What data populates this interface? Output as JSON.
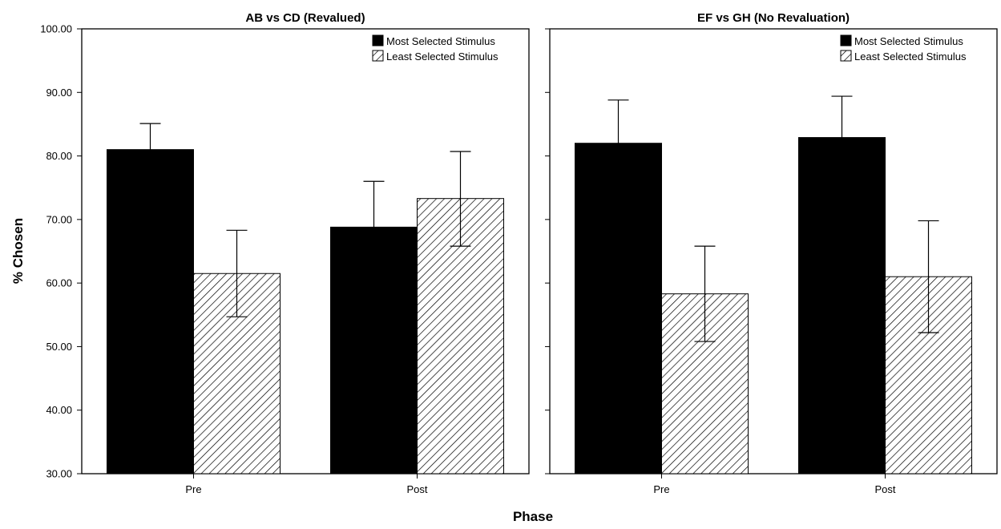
{
  "chart_data": {
    "type": "bar",
    "ylabel": "% Chosen",
    "xlabel": "Phase",
    "ylim": [
      30,
      100
    ],
    "yticks": [
      "30.00",
      "40.00",
      "50.00",
      "60.00",
      "70.00",
      "80.00",
      "90.00",
      "100.00"
    ],
    "legend_position": "top-right",
    "series_colors": {
      "most": "#000000",
      "least": "hatched"
    },
    "panels": [
      {
        "title": "AB vs CD (Revalued)",
        "categories": [
          "Pre",
          "Post"
        ],
        "series": [
          {
            "name": "Most Selected Stimulus",
            "values": [
              81.0,
              68.8
            ],
            "error_upper": [
              85.1,
              76.0
            ],
            "error_lower": [
              76.9,
              61.6
            ]
          },
          {
            "name": "Least Selected Stimulus",
            "values": [
              61.5,
              73.3
            ],
            "error_upper": [
              68.3,
              80.7
            ],
            "error_lower": [
              54.7,
              65.8
            ]
          }
        ]
      },
      {
        "title": "EF vs GH (No Revaluation)",
        "categories": [
          "Pre",
          "Post"
        ],
        "series": [
          {
            "name": "Most Selected Stimulus",
            "values": [
              82.0,
              82.9
            ],
            "error_upper": [
              88.8,
              89.4
            ],
            "error_lower": [
              75.2,
              76.4
            ]
          },
          {
            "name": "Least Selected Stimulus",
            "values": [
              58.3,
              61.0
            ],
            "error_upper": [
              65.8,
              69.8
            ],
            "error_lower": [
              50.8,
              52.2
            ]
          }
        ]
      }
    ]
  }
}
